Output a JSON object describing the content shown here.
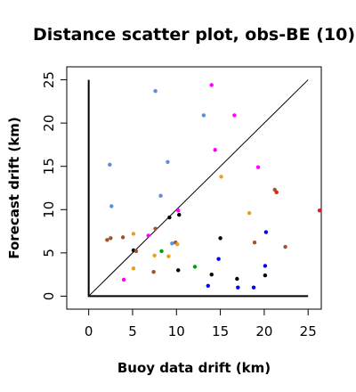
{
  "chart_data": {
    "type": "scatter",
    "title": "Distance scatter plot, obs-BE (10)",
    "xlabel": "Buoy data drift (km)",
    "ylabel": "Forecast drift (km)",
    "xlim": [
      -2.5,
      26.5
    ],
    "ylim": [
      -1.5,
      26.5
    ],
    "xticks": [
      0,
      5,
      10,
      15,
      20,
      25
    ],
    "yticks": [
      0,
      5,
      10,
      15,
      20,
      25
    ],
    "reference_line": {
      "from": [
        0,
        0
      ],
      "to": [
        25,
        25
      ],
      "color": "#000000"
    },
    "axes_bracket": {
      "x_max": 25,
      "y_max": 25,
      "color": "#000000"
    },
    "grid": false,
    "legend": "none",
    "points": [
      {
        "x": 7.6,
        "y": 23.7,
        "color": "#5b8fd9"
      },
      {
        "x": 14.0,
        "y": 24.4,
        "color": "#ff00ff"
      },
      {
        "x": 13.1,
        "y": 20.9,
        "color": "#5b8fd9"
      },
      {
        "x": 16.6,
        "y": 20.9,
        "color": "#ff00ff"
      },
      {
        "x": 14.4,
        "y": 16.9,
        "color": "#ff00ff"
      },
      {
        "x": 2.4,
        "y": 15.2,
        "color": "#5b8fd9"
      },
      {
        "x": 9.0,
        "y": 15.5,
        "color": "#5b8fd9"
      },
      {
        "x": 19.3,
        "y": 14.9,
        "color": "#ff00ff"
      },
      {
        "x": 15.1,
        "y": 13.8,
        "color": "#e8a020"
      },
      {
        "x": 21.2,
        "y": 12.3,
        "color": "#a0522d"
      },
      {
        "x": 21.4,
        "y": 12.0,
        "color": "#e02020"
      },
      {
        "x": 8.2,
        "y": 11.6,
        "color": "#5b8fd9"
      },
      {
        "x": 2.6,
        "y": 10.4,
        "color": "#5b8fd9"
      },
      {
        "x": 26.3,
        "y": 9.9,
        "color": "#e02020"
      },
      {
        "x": 10.2,
        "y": 9.9,
        "color": "#ff00ff"
      },
      {
        "x": 18.3,
        "y": 9.6,
        "color": "#e8a020"
      },
      {
        "x": 9.2,
        "y": 9.1,
        "color": "#000000"
      },
      {
        "x": 10.3,
        "y": 9.4,
        "color": "#000000"
      },
      {
        "x": 7.6,
        "y": 7.8,
        "color": "#a0522d"
      },
      {
        "x": 5.1,
        "y": 7.2,
        "color": "#e8a020"
      },
      {
        "x": 6.8,
        "y": 7.0,
        "color": "#ff00ff"
      },
      {
        "x": 2.1,
        "y": 6.5,
        "color": "#a0522d"
      },
      {
        "x": 2.5,
        "y": 6.7,
        "color": "#a0522d"
      },
      {
        "x": 3.9,
        "y": 6.8,
        "color": "#a0522d"
      },
      {
        "x": 9.5,
        "y": 6.1,
        "color": "#5b8fd9"
      },
      {
        "x": 9.9,
        "y": 6.2,
        "color": "#a0522d"
      },
      {
        "x": 10.1,
        "y": 6.0,
        "color": "#e8a020"
      },
      {
        "x": 15.0,
        "y": 6.7,
        "color": "#000000"
      },
      {
        "x": 20.2,
        "y": 7.4,
        "color": "#0000ff"
      },
      {
        "x": 18.9,
        "y": 6.2,
        "color": "#a0522d"
      },
      {
        "x": 22.4,
        "y": 5.7,
        "color": "#a0522d"
      },
      {
        "x": 5.1,
        "y": 5.3,
        "color": "#000000"
      },
      {
        "x": 5.4,
        "y": 5.2,
        "color": "#a0522d"
      },
      {
        "x": 8.3,
        "y": 5.2,
        "color": "#00a000"
      },
      {
        "x": 7.5,
        "y": 4.7,
        "color": "#e8a020"
      },
      {
        "x": 9.1,
        "y": 4.6,
        "color": "#e8a020"
      },
      {
        "x": 14.8,
        "y": 4.3,
        "color": "#0000ff"
      },
      {
        "x": 5.1,
        "y": 3.2,
        "color": "#e8a020"
      },
      {
        "x": 7.4,
        "y": 2.8,
        "color": "#a0522d"
      },
      {
        "x": 10.2,
        "y": 3.0,
        "color": "#000000"
      },
      {
        "x": 12.1,
        "y": 3.4,
        "color": "#00a000"
      },
      {
        "x": 14.0,
        "y": 2.5,
        "color": "#000000"
      },
      {
        "x": 20.1,
        "y": 3.5,
        "color": "#0000ff"
      },
      {
        "x": 20.1,
        "y": 2.4,
        "color": "#000000"
      },
      {
        "x": 16.9,
        "y": 2.0,
        "color": "#000000"
      },
      {
        "x": 4.0,
        "y": 1.9,
        "color": "#ff00ff"
      },
      {
        "x": 13.6,
        "y": 1.2,
        "color": "#0000ff"
      },
      {
        "x": 17.0,
        "y": 1.0,
        "color": "#0000ff"
      },
      {
        "x": 18.8,
        "y": 1.0,
        "color": "#0000ff"
      }
    ]
  }
}
